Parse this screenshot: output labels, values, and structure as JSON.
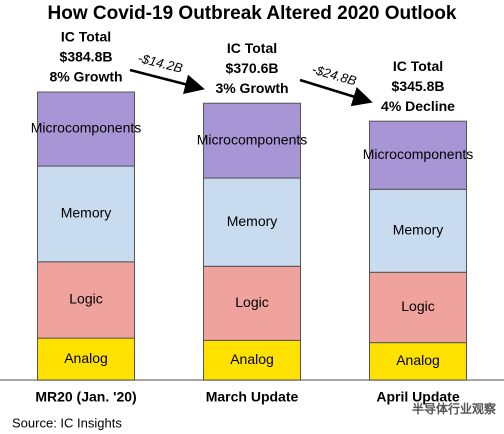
{
  "chart_data": {
    "type": "stacked-bar",
    "title": "How Covid-19 Outbreak Altered 2020 Outlook",
    "categories": [
      "MR20 (Jan. '20)",
      "March Update",
      "April Update"
    ],
    "series": [
      {
        "name": "Analog",
        "color": "#ffe100",
        "values": [
          56,
          53,
          50
        ]
      },
      {
        "name": "Logic",
        "color": "#f0a29c",
        "values": [
          102,
          99,
          94
        ]
      },
      {
        "name": "Memory",
        "color": "#c8dbef",
        "values": [
          128,
          118,
          111
        ]
      },
      {
        "name": "Microcomponents",
        "color": "#a895d6",
        "values": [
          99,
          100,
          91
        ]
      }
    ],
    "annotations": [
      [
        "IC Total",
        "$384.8B",
        "8% Growth"
      ],
      [
        "IC Total",
        "$370.6B",
        "3% Growth"
      ],
      [
        "IC Total",
        "$345.8B",
        "4% Decline"
      ]
    ],
    "changes": [
      "-$14.2B",
      "-$24.8B"
    ],
    "source": "Source: IC Insights",
    "watermark": "半导体行业观察"
  }
}
